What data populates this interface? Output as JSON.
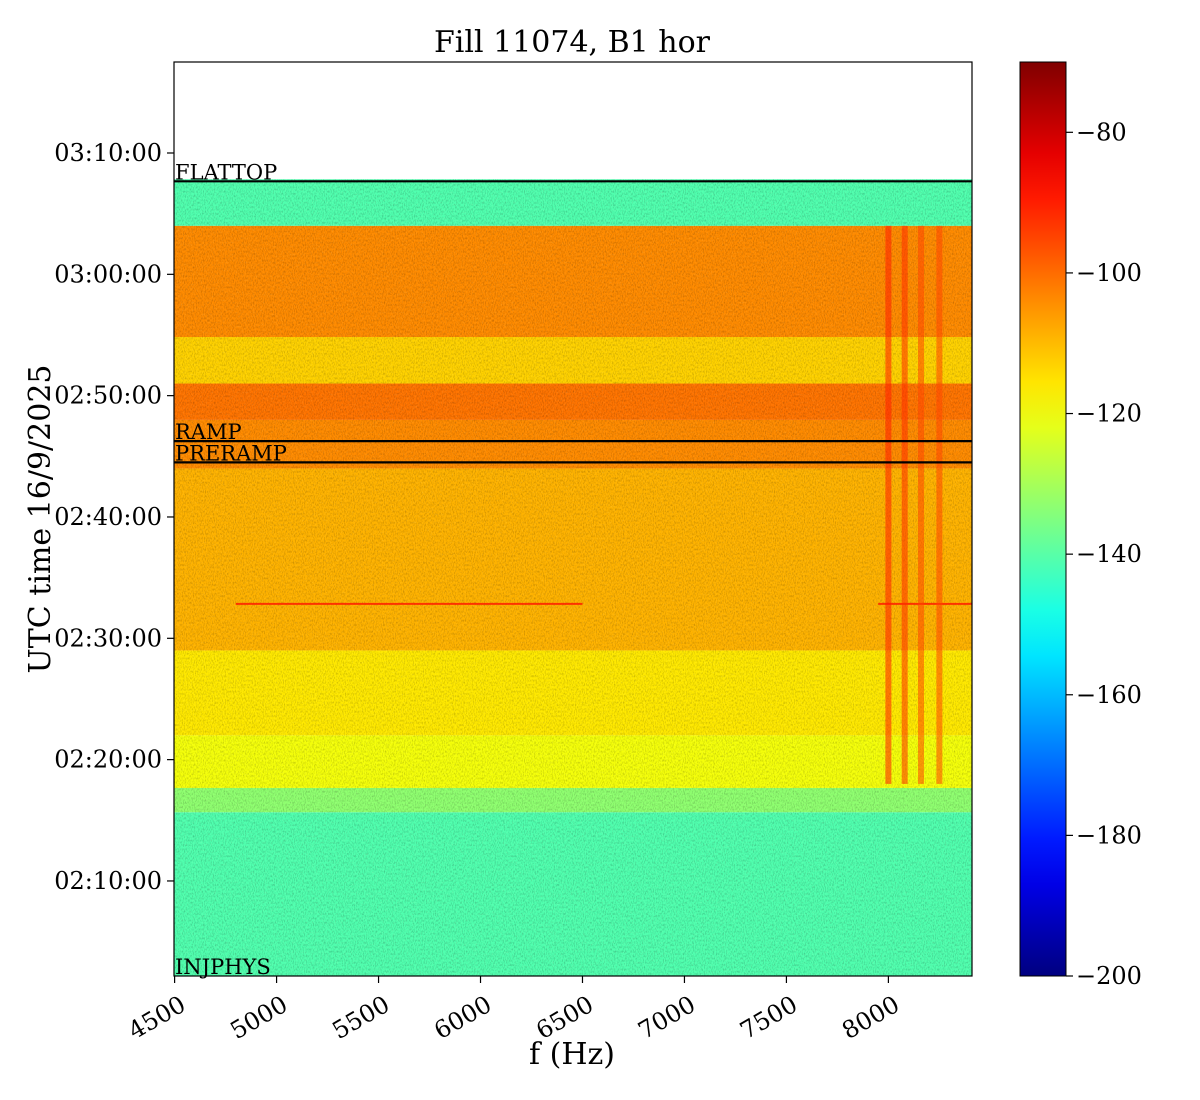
{
  "chart_data": {
    "type": "heatmap",
    "title": "Fill 11074, B1 hor",
    "xlabel": "f (Hz)",
    "ylabel": "UTC time 16/9/2025",
    "xlim": [
      4497,
      8410
    ],
    "ylim": [
      "02:02:10",
      "03:17:30"
    ],
    "x_ticks": [
      4500,
      5000,
      5500,
      6000,
      6500,
      7000,
      7500,
      8000
    ],
    "x_tick_labels": [
      "4500",
      "5000",
      "5500",
      "6000",
      "6500",
      "7000",
      "7500",
      "8000"
    ],
    "y_ticks": [
      "02:10:00",
      "02:20:00",
      "02:30:00",
      "02:40:00",
      "02:50:00",
      "03:00:00",
      "03:10:00"
    ],
    "y_tick_labels": [
      "02:10:00",
      "02:20:00",
      "02:30:00",
      "02:40:00",
      "02:50:00",
      "03:00:00",
      "03:10:00"
    ],
    "data_time_range": [
      "02:02:10",
      "03:07:50"
    ],
    "colorscale": "jet",
    "colorbar": {
      "range": [
        -200,
        -70
      ],
      "ticks": [
        -80,
        -100,
        -120,
        -140,
        -160,
        -180,
        -200
      ],
      "tick_labels": [
        "−80",
        "−100",
        "−120",
        "−140",
        "−160",
        "−180",
        "−200"
      ]
    },
    "phase_markers": [
      {
        "label": "INJPHYS",
        "time": "02:02:10"
      },
      {
        "label": "PRERAMP",
        "time": "02:44:30"
      },
      {
        "label": "RAMP",
        "time": "02:46:15"
      },
      {
        "label": "FLATTOP",
        "time": "03:07:40"
      }
    ],
    "time_bands": [
      {
        "start": "02:02:10",
        "end": "02:15:40",
        "level_db": -141
      },
      {
        "start": "02:15:40",
        "end": "02:17:40",
        "level_db": -133
      },
      {
        "start": "02:17:40",
        "end": "02:22:00",
        "level_db": -120
      },
      {
        "start": "02:22:00",
        "end": "02:29:00",
        "level_db": -116
      },
      {
        "start": "02:29:00",
        "end": "02:44:00",
        "level_db": -109
      },
      {
        "start": "02:44:00",
        "end": "02:48:00",
        "level_db": -104
      },
      {
        "start": "02:48:00",
        "end": "02:51:00",
        "level_db": -101
      },
      {
        "start": "02:51:00",
        "end": "02:54:50",
        "level_db": -113
      },
      {
        "start": "02:54:50",
        "end": "03:04:00",
        "level_db": -104
      },
      {
        "start": "03:04:00",
        "end": "03:07:50",
        "level_db": -141
      }
    ],
    "features": [
      {
        "kind": "line",
        "time": "02:32:50",
        "f_start": 4800,
        "f_end": 6500,
        "level_db": -90
      },
      {
        "kind": "line",
        "time": "02:32:50",
        "f_start": 7950,
        "f_end": 8410,
        "level_db": -90
      },
      {
        "kind": "stripe",
        "f": 8000,
        "time_start": "02:18:00",
        "time_end": "03:04:00",
        "level_db": -90
      },
      {
        "kind": "stripe",
        "f": 8080,
        "time_start": "02:18:00",
        "time_end": "03:04:00",
        "level_db": -92
      },
      {
        "kind": "stripe",
        "f": 8160,
        "time_start": "02:18:00",
        "time_end": "03:04:00",
        "level_db": -95
      },
      {
        "kind": "stripe",
        "f": 8250,
        "time_start": "02:18:00",
        "time_end": "03:04:00",
        "level_db": -95
      }
    ]
  }
}
